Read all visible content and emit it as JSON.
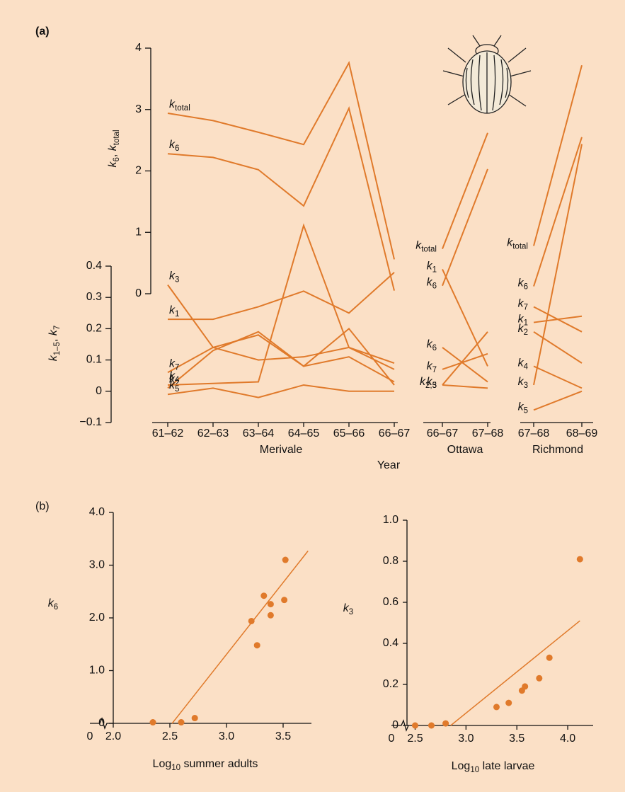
{
  "chart_data": [
    {
      "type": "line",
      "panel_label": "(a)",
      "y_label": "k6, ktotal",
      "y2_label": "k1–5, k7",
      "x_label": "Year",
      "color": "#e07a2b",
      "ylim": [
        0,
        4
      ],
      "yticks": [
        0,
        1,
        2,
        3,
        4
      ],
      "y2lim": [
        -0.1,
        0.4
      ],
      "y2ticks": [
        {
          "value": -0.1,
          "label": "−0.1"
        },
        0,
        0.1,
        0.2,
        0.3,
        0.4
      ],
      "groups": [
        {
          "name": "Merivale",
          "categories": [
            "61–62",
            "62–63",
            "63–64",
            "64–65",
            "65–66",
            "66–67"
          ],
          "series": [
            {
              "name": "ktotal",
              "values": [
                2.94,
                2.82,
                2.63,
                2.43,
                3.76,
                0.56
              ]
            },
            {
              "name": "k6",
              "values": [
                2.28,
                2.22,
                2.02,
                1.43,
                3.02,
                0.05
              ]
            },
            {
              "name": "k3",
              "axis": "y2",
              "values": [
                0.34,
                0.14,
                0.1,
                0.11,
                0.14,
                0.07
              ]
            },
            {
              "name": "k1",
              "axis": "y2",
              "values": [
                0.23,
                0.23,
                0.27,
                0.32,
                0.25,
                0.38
              ]
            },
            {
              "name": "k7",
              "axis": "y2",
              "values": [
                0.06,
                0.14,
                0.18,
                0.08,
                0.11,
                0.03
              ]
            },
            {
              "name": "k2",
              "axis": "y2",
              "values": [
                0.01,
                0.13,
                0.19,
                0.08,
                0.2,
                0.02
              ]
            },
            {
              "name": "k4",
              "axis": "y2",
              "values": [
                0.02,
                0.025,
                0.03,
                0.53,
                0.14,
                0.09
              ]
            },
            {
              "name": "k5",
              "axis": "y2",
              "values": [
                -0.01,
                0.01,
                -0.02,
                0.02,
                0.0,
                0.0
              ]
            }
          ]
        },
        {
          "name": "Ottawa",
          "categories": [
            "66–67",
            "67–68"
          ],
          "series": [
            {
              "name": "ktotal",
              "values": [
                0.73,
                2.62
              ]
            },
            {
              "name": "k6",
              "values": [
                0.13,
                2.03
              ]
            },
            {
              "name": "k1",
              "axis": "y2",
              "values": [
                0.39,
                0.08
              ]
            },
            {
              "name": "k6",
              "axis": "y2",
              "values": [
                0.14,
                0.03
              ]
            },
            {
              "name": "k7",
              "axis": "y2",
              "values": [
                0.07,
                0.12
              ]
            },
            {
              "name": "k2,3",
              "axis": "y2",
              "values": [
                0.02,
                0.19
              ]
            },
            {
              "name": "k5",
              "axis": "y2",
              "values": [
                0.02,
                0.01
              ]
            }
          ]
        },
        {
          "name": "Richmond",
          "categories": [
            "67–68",
            "68–69"
          ],
          "series": [
            {
              "name": "ktotal",
              "values": [
                0.78,
                3.72
              ]
            },
            {
              "name": "k6",
              "values": [
                0.12,
                2.55
              ]
            },
            {
              "name": "k7",
              "axis": "y2",
              "values": [
                0.27,
                0.19
              ]
            },
            {
              "name": "k1",
              "axis": "y2",
              "values": [
                0.22,
                0.24
              ]
            },
            {
              "name": "k2",
              "axis": "y2",
              "values": [
                0.19,
                0.09
              ]
            },
            {
              "name": "k4",
              "axis": "y2",
              "values": [
                0.08,
                0.01
              ]
            },
            {
              "name": "k3",
              "axis": "y2",
              "values": [
                0.02,
                0.79
              ]
            },
            {
              "name": "k5",
              "axis": "y2",
              "values": [
                -0.06,
                0.0
              ]
            }
          ]
        }
      ]
    },
    {
      "type": "scatter",
      "panel_label": "(b)",
      "y_label": "k6",
      "x_label": "Log10 summer adults",
      "color": "#e07a2b",
      "x_break_label": "0",
      "xlim": [
        2.0,
        3.75
      ],
      "xticks": [
        {
          "value": 2.0,
          "label": "2.0"
        },
        2.5,
        {
          "value": 3.0,
          "label": "3.0"
        },
        3.5
      ],
      "ylim": [
        0,
        4
      ],
      "yticks": [
        0,
        {
          "value": 1,
          "label": "1.0"
        },
        {
          "value": 2,
          "label": "2.0"
        },
        {
          "value": 3,
          "label": "3.0"
        },
        {
          "value": 4,
          "label": "4.0"
        }
      ],
      "x": [
        2.35,
        2.6,
        2.72,
        3.22,
        3.27,
        3.33,
        3.39,
        3.39,
        3.51,
        3.52
      ],
      "values": [
        0.02,
        0.02,
        0.1,
        1.94,
        1.48,
        2.42,
        2.05,
        2.26,
        2.34,
        3.1
      ],
      "fit_x": [
        2.52,
        3.72
      ],
      "fit_values": [
        0,
        3.27
      ]
    },
    {
      "type": "scatter",
      "y_label": "k3",
      "x_label": "Log10 late larvae",
      "color": "#e07a2b",
      "x_break_label": "0",
      "xlim": [
        2.42,
        4.25
      ],
      "xticks": [
        2.5,
        {
          "value": 3.0,
          "label": "3.0"
        },
        3.5,
        {
          "value": 4.0,
          "label": "4.0"
        }
      ],
      "ylim": [
        0,
        1
      ],
      "yticks": [
        0,
        0.2,
        0.4,
        0.6,
        0.8,
        {
          "value": 1,
          "label": "1.0"
        }
      ],
      "x": [
        2.5,
        2.66,
        2.8,
        3.3,
        3.42,
        3.55,
        3.58,
        3.72,
        3.82,
        4.12
      ],
      "values": [
        0,
        0,
        0.01,
        0.09,
        0.11,
        0.17,
        0.19,
        0.23,
        0.33,
        0.81
      ],
      "fit_x": [
        2.85,
        4.12
      ],
      "fit_values": [
        0,
        0.51
      ]
    }
  ]
}
